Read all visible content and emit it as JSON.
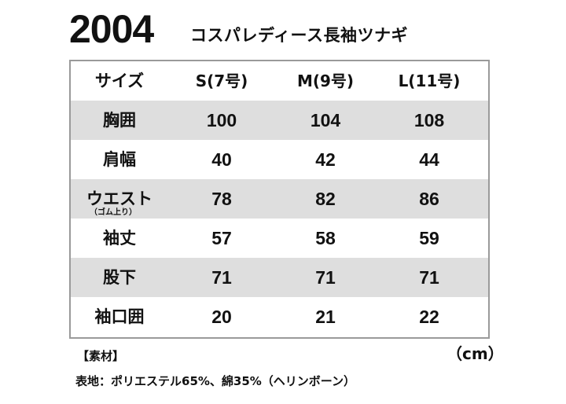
{
  "header": {
    "model_number": "2004",
    "product_name": "コスパレディース長袖ツナギ"
  },
  "size_table": {
    "header": {
      "label": "サイズ",
      "columns": [
        "S(7号)",
        "M(9号)",
        "L(11号)"
      ]
    },
    "rows": [
      {
        "label": "胸囲",
        "values": [
          "100",
          "104",
          "108"
        ]
      },
      {
        "label": "肩幅",
        "values": [
          "40",
          "42",
          "44"
        ]
      },
      {
        "label": "ウエスト",
        "note": "（ゴム上り）",
        "values": [
          "78",
          "82",
          "86"
        ]
      },
      {
        "label": "袖丈",
        "values": [
          "57",
          "58",
          "59"
        ]
      },
      {
        "label": "股下",
        "values": [
          "71",
          "71",
          "71"
        ]
      },
      {
        "label": "袖口囲",
        "values": [
          "20",
          "21",
          "22"
        ]
      }
    ],
    "unit": "（cm）"
  },
  "material": {
    "heading": "【素材】",
    "text": "表地：ポリエステル65%、綿35%（ヘリンボーン）"
  }
}
